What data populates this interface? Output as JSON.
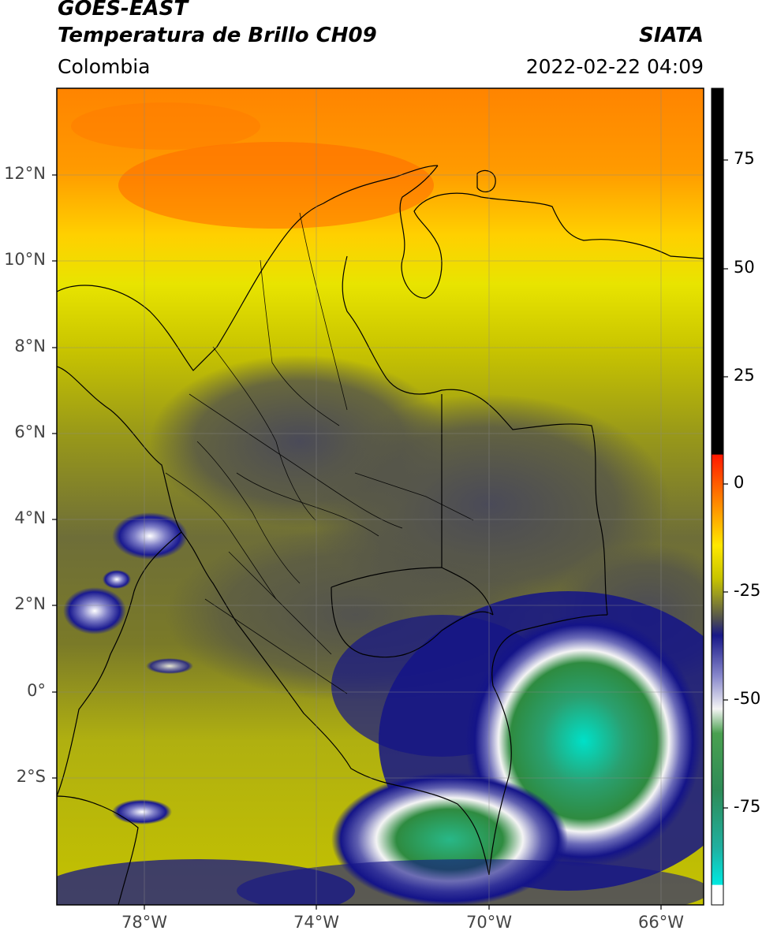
{
  "header": {
    "title_line1": "GOES-EAST",
    "title_line2": "Temperatura de Brillo CH09",
    "brand": "SIATA",
    "region": "Colombia",
    "datetime": "2022-02-22 04:09"
  },
  "axes": {
    "lat_labels": [
      "12°N",
      "10°N",
      "8°N",
      "6°N",
      "4°N",
      "2°N",
      "0°",
      "2°S"
    ],
    "lon_labels": [
      "78°W",
      "74°W",
      "70°W",
      "66°W"
    ]
  },
  "colorbar": {
    "tick_labels": [
      "75",
      "50",
      "25",
      "0",
      "-25",
      "-50",
      "-75"
    ]
  },
  "colors": {
    "orange": "#ff8c00",
    "yellow": "#e6e600",
    "olive": "#a6a600",
    "gray": "#4a4a55",
    "navy": "#101080",
    "white": "#f0f0f0",
    "green": "#2e8b57",
    "cyan": "#00e5cc",
    "red": "#ff2000",
    "black": "#000000"
  }
}
